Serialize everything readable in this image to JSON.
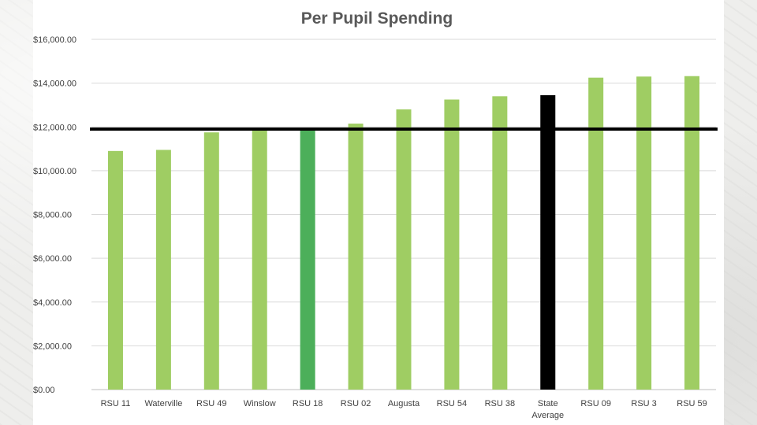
{
  "chart_data": {
    "type": "bar",
    "title": "Per Pupil Spending",
    "xlabel": "",
    "ylabel": "",
    "categories": [
      "RSU 11",
      "Waterville",
      "RSU 49",
      "Winslow",
      "RSU 18",
      "RSU 02",
      "Augusta",
      "RSU 54",
      "RSU 38",
      "State Average",
      "RSU 09",
      "RSU 3",
      "RSU 59"
    ],
    "values": [
      10900,
      10950,
      11750,
      11850,
      11900,
      12150,
      12800,
      13250,
      13400,
      13450,
      14250,
      14300,
      14320
    ],
    "bar_colors": [
      "#9fcd63",
      "#9fcd63",
      "#9fcd63",
      "#9fcd63",
      "#4caf5a",
      "#9fcd63",
      "#9fcd63",
      "#9fcd63",
      "#9fcd63",
      "#000000",
      "#9fcd63",
      "#9fcd63",
      "#9fcd63"
    ],
    "ylim": [
      0,
      16000
    ],
    "yticks": [
      0,
      2000,
      4000,
      6000,
      8000,
      10000,
      12000,
      14000,
      16000
    ],
    "ytick_labels": [
      "$0.00",
      "$2,000.00",
      "$4,000.00",
      "$6,000.00",
      "$8,000.00",
      "$10,000.00",
      "$12,000.00",
      "$14,000.00",
      "$16,000.00"
    ],
    "reference_line": 11900,
    "reference_line_color": "#000000",
    "grid": true,
    "legend": "none"
  }
}
